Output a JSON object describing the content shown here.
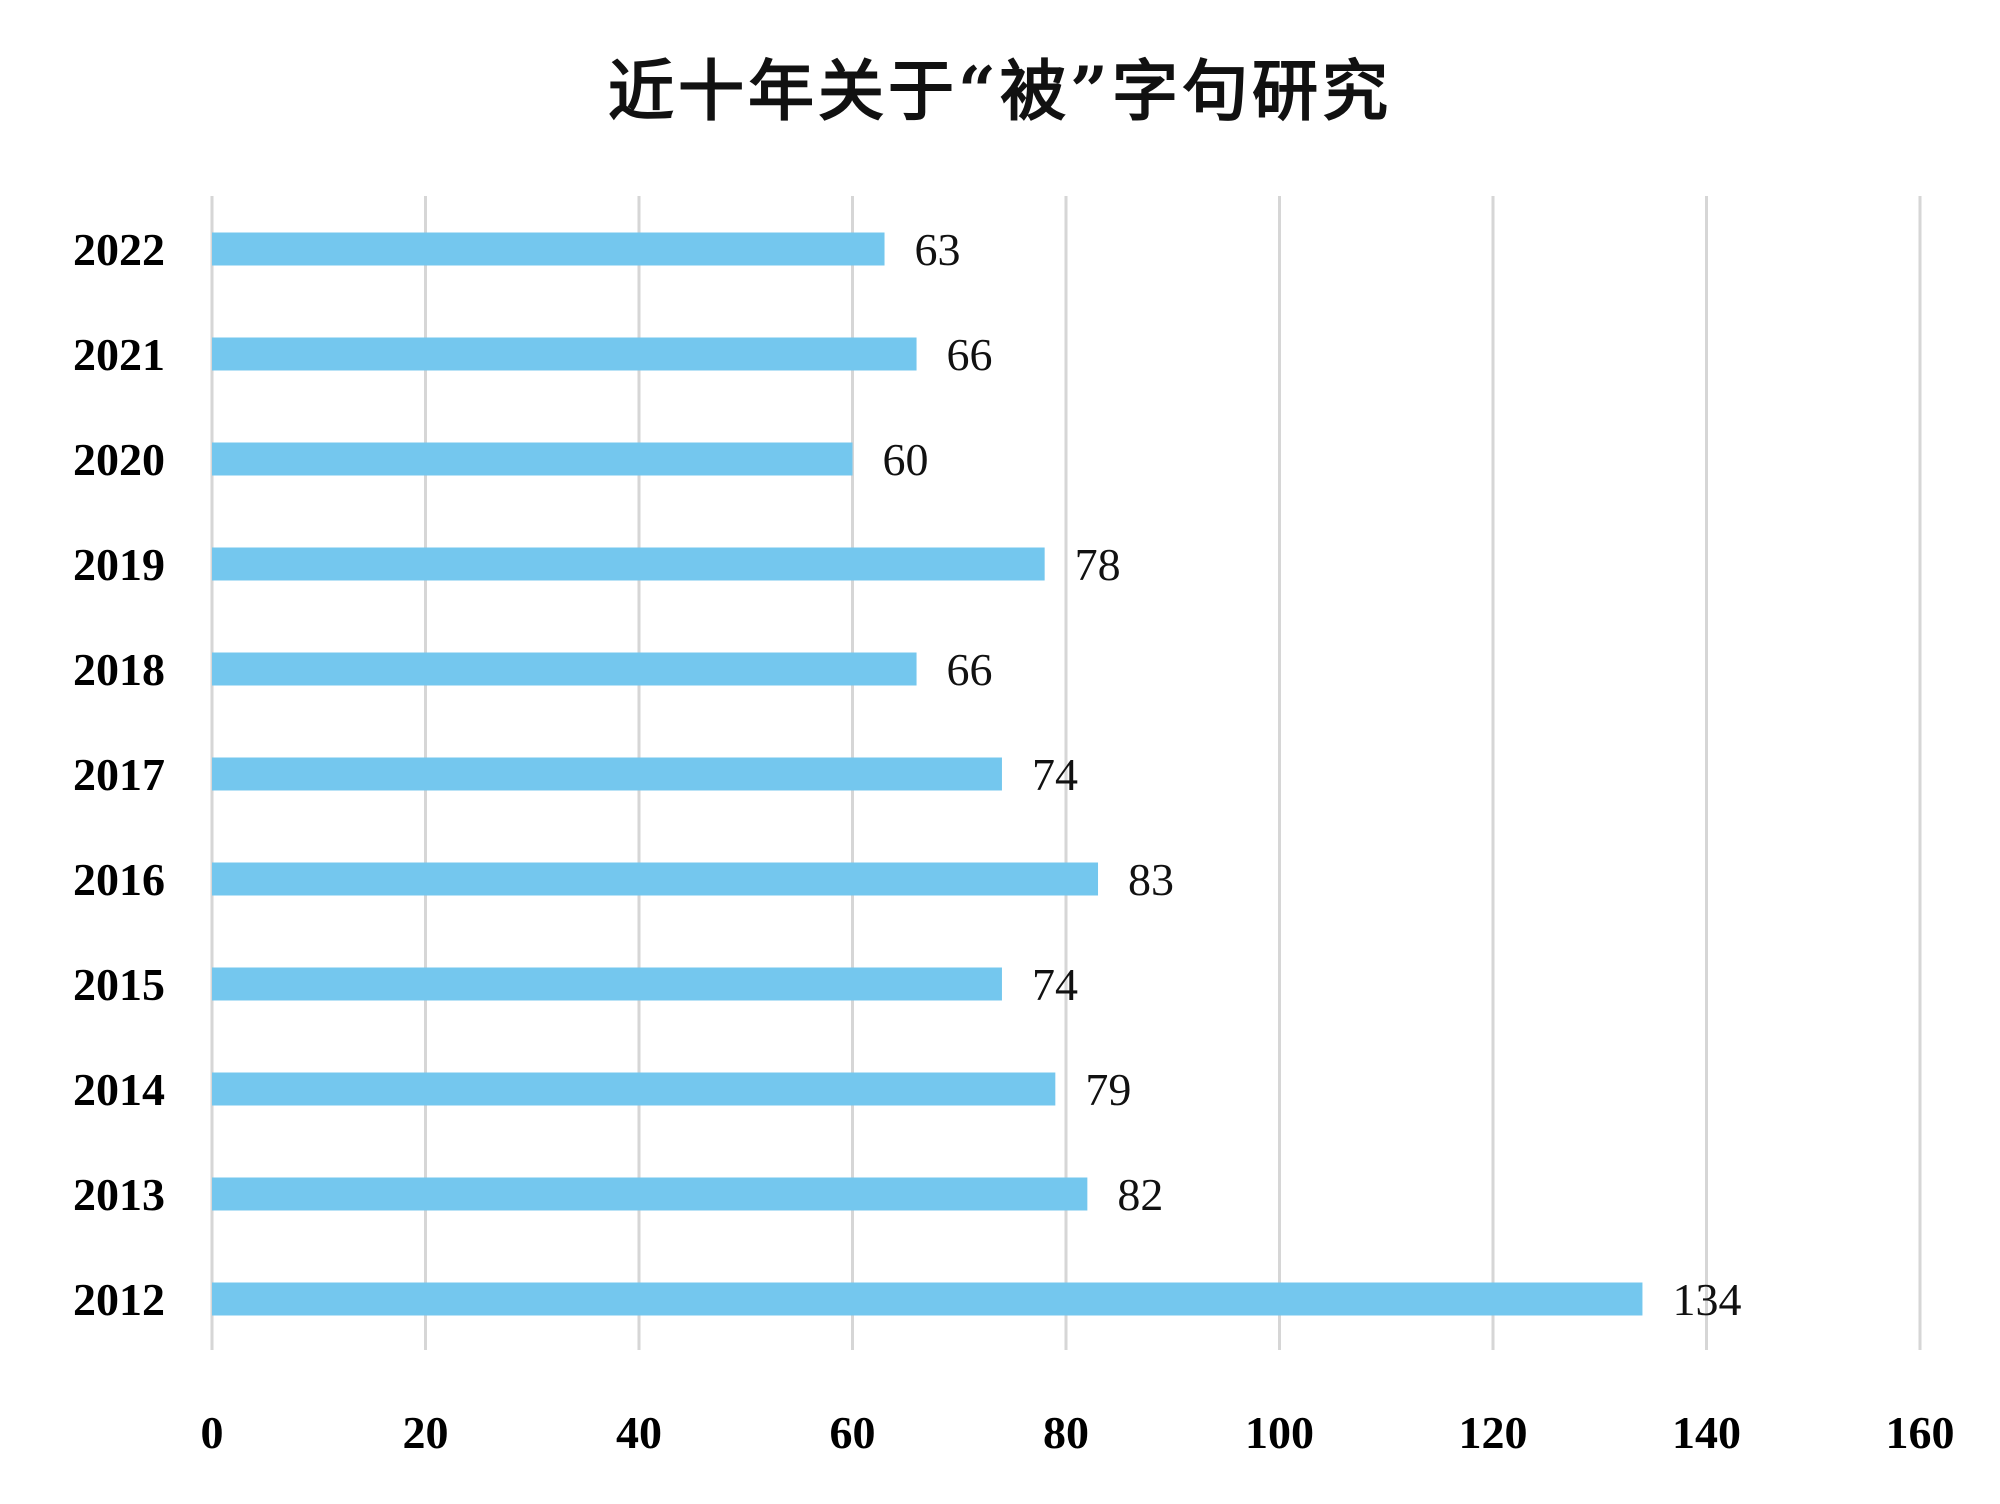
{
  "chart_data": {
    "type": "bar",
    "orientation": "horizontal",
    "title": "近十年关于“被”字句研究",
    "categories": [
      "2022",
      "2021",
      "2020",
      "2019",
      "2018",
      "2017",
      "2016",
      "2015",
      "2014",
      "2013",
      "2012"
    ],
    "values": [
      63,
      66,
      60,
      78,
      66,
      74,
      83,
      74,
      79,
      82,
      134
    ],
    "x_ticks": [
      "0",
      "20",
      "40",
      "60",
      "80",
      "100",
      "120",
      "140",
      "160"
    ],
    "xlim": [
      0,
      160
    ],
    "xlabel": "",
    "ylabel": "",
    "grid": "vertical",
    "legend": "none",
    "data_labels": true,
    "bar_color": "#74c7ee"
  }
}
